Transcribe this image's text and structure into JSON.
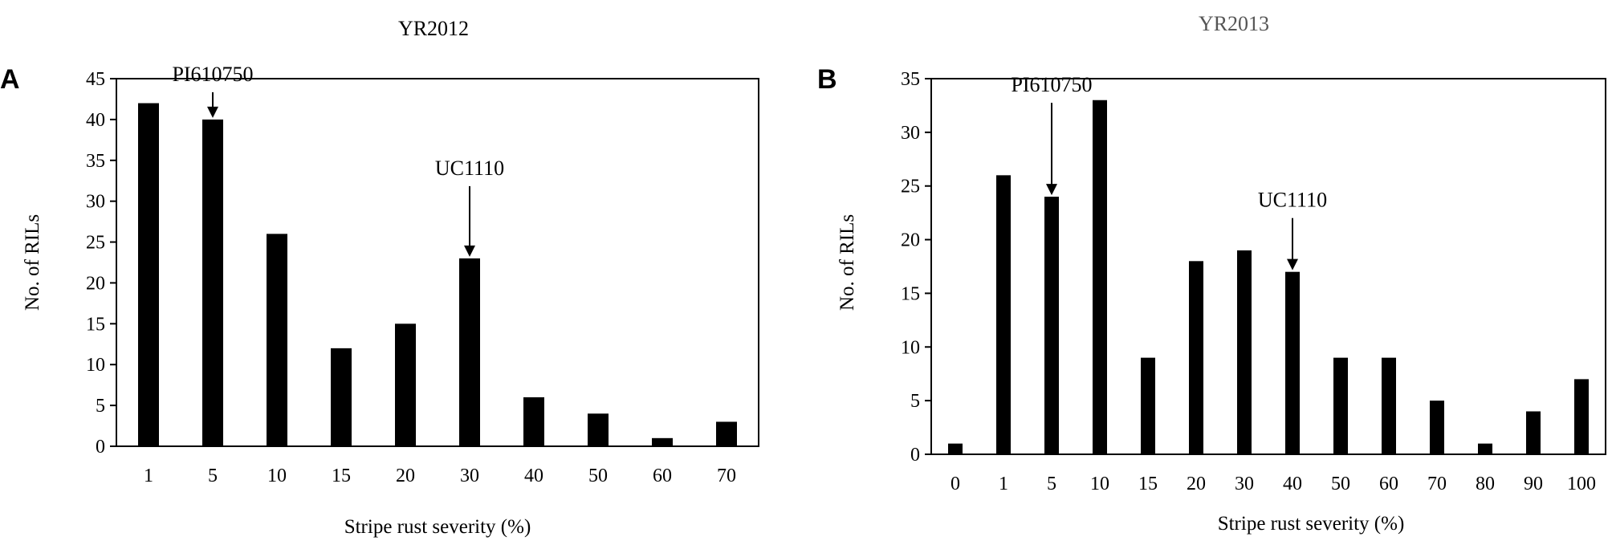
{
  "chart_data": [
    {
      "panel_label": "A",
      "type": "bar",
      "title": "YR2012",
      "xlabel": "Stripe rust severity (%)",
      "ylabel": "No. of RILs",
      "ylim": [
        0,
        45
      ],
      "yticks": [
        0,
        5,
        10,
        15,
        20,
        25,
        30,
        35,
        40,
        45
      ],
      "categories": [
        "1",
        "5",
        "10",
        "15",
        "20",
        "30",
        "40",
        "50",
        "60",
        "70"
      ],
      "values": [
        42,
        40,
        26,
        12,
        15,
        23,
        6,
        4,
        1,
        3
      ],
      "bar_color": "#000000",
      "annotations": [
        {
          "text": "PI610750",
          "category": "5"
        },
        {
          "text": "UC1110",
          "category": "30"
        }
      ]
    },
    {
      "panel_label": "B",
      "type": "bar",
      "title": "YR2013",
      "xlabel": "Stripe rust severity (%)",
      "ylabel": "No. of RILs",
      "ylim": [
        0,
        35
      ],
      "yticks": [
        0,
        5,
        10,
        15,
        20,
        25,
        30,
        35
      ],
      "categories": [
        "0",
        "1",
        "5",
        "10",
        "15",
        "20",
        "30",
        "40",
        "50",
        "60",
        "70",
        "80",
        "90",
        "100"
      ],
      "values": [
        1,
        26,
        24,
        33,
        9,
        18,
        19,
        17,
        9,
        9,
        5,
        1,
        4,
        7
      ],
      "bar_color": "#000000",
      "annotations": [
        {
          "text": "PI610750",
          "category": "5"
        },
        {
          "text": "UC1110",
          "category": "40"
        }
      ]
    }
  ]
}
